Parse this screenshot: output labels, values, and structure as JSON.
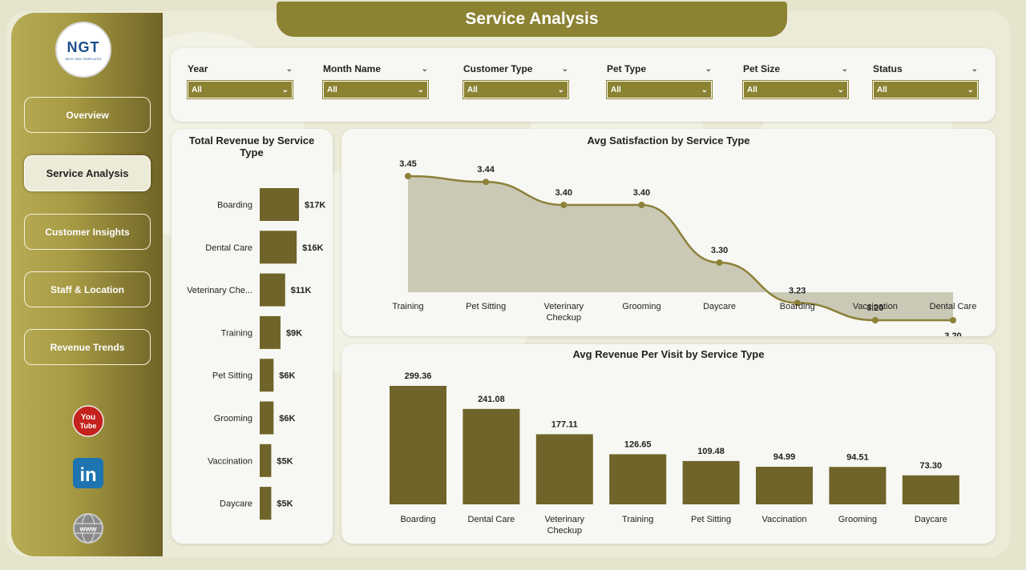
{
  "title": "Service Analysis",
  "logo": {
    "text": "NGT",
    "subtext": "NEXT GEN TEMPLATES"
  },
  "nav": [
    {
      "label": "Overview",
      "active": false
    },
    {
      "label": "Service Analysis",
      "active": true
    },
    {
      "label": "Customer Insights",
      "active": false
    },
    {
      "label": "Staff & Location",
      "active": false
    },
    {
      "label": "Revenue Trends",
      "active": false
    }
  ],
  "social": {
    "youtube": {
      "line1": "You",
      "line2": "Tube"
    },
    "linkedin": "in",
    "web": "www"
  },
  "filters": [
    {
      "label": "Year",
      "value": "All"
    },
    {
      "label": "Month Name",
      "value": "All"
    },
    {
      "label": "Customer Type",
      "value": "All"
    },
    {
      "label": "Pet Type",
      "value": "All"
    },
    {
      "label": "Pet Size",
      "value": "All"
    },
    {
      "label": "Status",
      "value": "All"
    }
  ],
  "colors": {
    "accent": "#8b8232",
    "bar": "#6f6429",
    "area": "#cac9b6",
    "line": "#8b8139"
  },
  "chart_data": [
    {
      "type": "bar",
      "orientation": "horizontal",
      "title": "Total Revenue by Service Type",
      "categories": [
        "Boarding",
        "Dental Care",
        "Veterinary Che...",
        "Training",
        "Pet Sitting",
        "Grooming",
        "Vaccination",
        "Daycare"
      ],
      "values": [
        17000,
        16000,
        11000,
        9000,
        6000,
        6000,
        5000,
        5000
      ],
      "labels": [
        "$17K",
        "$16K",
        "$11K",
        "$9K",
        "$6K",
        "$6K",
        "$5K",
        "$5K"
      ],
      "grid": false
    },
    {
      "type": "area",
      "title": "Avg Satisfaction by Service Type",
      "categories": [
        "Training",
        "Pet Sitting",
        "Veterinary Checkup",
        "Grooming",
        "Daycare",
        "Boarding",
        "Vaccination",
        "Dental Care"
      ],
      "values": [
        3.45,
        3.44,
        3.4,
        3.4,
        3.3,
        3.23,
        3.2,
        3.2
      ],
      "labels": [
        "3.45",
        "3.44",
        "3.40",
        "3.40",
        "3.30",
        "3.23",
        "3.20",
        "3.20"
      ],
      "grid": false
    },
    {
      "type": "bar",
      "title": "Avg Revenue Per Visit by Service Type",
      "categories": [
        "Boarding",
        "Dental Care",
        "Veterinary Checkup",
        "Training",
        "Pet Sitting",
        "Vaccination",
        "Grooming",
        "Daycare"
      ],
      "values": [
        299.36,
        241.08,
        177.11,
        126.65,
        109.48,
        94.99,
        94.51,
        73.3
      ],
      "labels": [
        "299.36",
        "241.08",
        "177.11",
        "126.65",
        "109.48",
        "94.99",
        "94.51",
        "73.30"
      ],
      "grid": false
    }
  ]
}
